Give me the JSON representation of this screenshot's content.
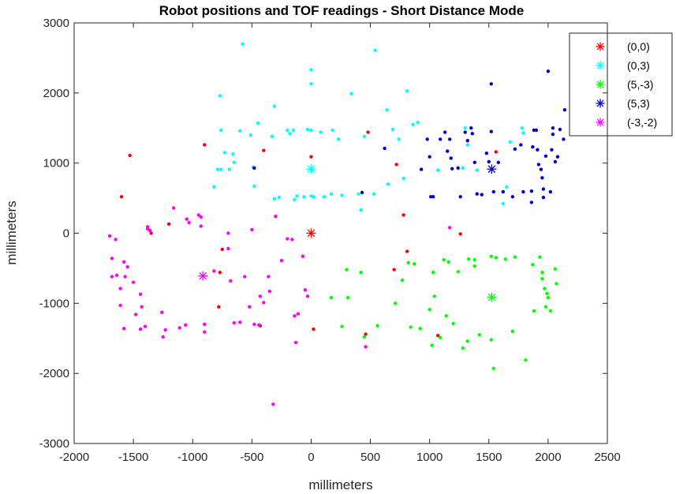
{
  "chart_data": {
    "type": "scatter",
    "title": "Robot positions and TOF readings - Short Distance Mode",
    "xlabel": "millimeters",
    "ylabel": "millimeters",
    "xlim": [
      -2000,
      2500
    ],
    "ylim": [
      -3000,
      3000
    ],
    "xticks": [
      -2000,
      -1500,
      -1000,
      -500,
      0,
      500,
      1000,
      1500,
      2000,
      2500
    ],
    "yticks": [
      -3000,
      -2000,
      -1000,
      0,
      1000,
      2000,
      3000
    ],
    "xtick_labels": [
      "-2000",
      "-1500",
      "-1000",
      "-500",
      "0",
      "500",
      "1000",
      "1500",
      "2000",
      "2500"
    ],
    "ytick_labels": [
      "-3000",
      "-2000",
      "-1000",
      "0",
      "1000",
      "2000",
      "3000"
    ],
    "grid": false,
    "legend_position": "top-right",
    "series": [
      {
        "name": "(0,0)",
        "color": "#ff0000",
        "robot": [
          0,
          0
        ],
        "points": [
          [
            -1530,
            1110
          ],
          [
            -1600,
            520
          ],
          [
            -1350,
            0
          ],
          [
            -900,
            1260
          ],
          [
            -400,
            1180
          ],
          [
            0,
            1090
          ],
          [
            480,
            1440
          ],
          [
            720,
            980
          ],
          [
            1560,
            1160
          ],
          [
            -1200,
            130
          ],
          [
            -750,
            -230
          ],
          [
            -770,
            -560
          ],
          [
            -780,
            -1050
          ],
          [
            -430,
            -1320
          ],
          [
            20,
            -1370
          ],
          [
            460,
            -1440
          ],
          [
            700,
            -520
          ],
          [
            810,
            -260
          ],
          [
            780,
            260
          ],
          [
            1260,
            -10
          ],
          [
            1070,
            -1460
          ]
        ]
      },
      {
        "name": "(0,3)",
        "color": "#00ffff",
        "robot": [
          0,
          914
        ],
        "points": [
          [
            -580,
            2700
          ],
          [
            -770,
            1960
          ],
          [
            -760,
            1470
          ],
          [
            -730,
            1150
          ],
          [
            -660,
            1130
          ],
          [
            -650,
            1010
          ],
          [
            -790,
            910
          ],
          [
            -760,
            910
          ],
          [
            -690,
            910
          ],
          [
            -820,
            660
          ],
          [
            -600,
            1460
          ],
          [
            -510,
            1400
          ],
          [
            -450,
            1570
          ],
          [
            -490,
            940
          ],
          [
            -480,
            670
          ],
          [
            -330,
            1380
          ],
          [
            -310,
            1810
          ],
          [
            -310,
            490
          ],
          [
            -270,
            510
          ],
          [
            -200,
            1470
          ],
          [
            -180,
            1420
          ],
          [
            -150,
            1470
          ],
          [
            -140,
            480
          ],
          [
            -120,
            530
          ],
          [
            -60,
            520
          ],
          [
            -30,
            1480
          ],
          [
            0,
            1470
          ],
          [
            0,
            2330
          ],
          [
            0,
            2130
          ],
          [
            0,
            530
          ],
          [
            20,
            520
          ],
          [
            80,
            1440
          ],
          [
            110,
            520
          ],
          [
            170,
            560
          ],
          [
            180,
            1470
          ],
          [
            230,
            1340
          ],
          [
            260,
            540
          ],
          [
            340,
            1990
          ],
          [
            400,
            560
          ],
          [
            420,
            330
          ],
          [
            450,
            1380
          ],
          [
            530,
            560
          ],
          [
            540,
            2610
          ],
          [
            640,
            1760
          ],
          [
            650,
            700
          ],
          [
            690,
            1480
          ],
          [
            740,
            1340
          ],
          [
            780,
            780
          ],
          [
            810,
            2030
          ],
          [
            860,
            1550
          ],
          [
            900,
            1580
          ],
          [
            1070,
            900
          ],
          [
            1300,
            1500
          ],
          [
            1320,
            1260
          ],
          [
            1280,
            930
          ],
          [
            1400,
            900
          ],
          [
            1620,
            420
          ],
          [
            1650,
            660
          ],
          [
            1680,
            1300
          ],
          [
            1780,
            1500
          ],
          [
            1790,
            1430
          ]
        ]
      },
      {
        "name": "(5,-3)",
        "color": "#00ff00",
        "robot": [
          1524,
          -914
        ],
        "points": [
          [
            170,
            -920
          ],
          [
            260,
            -1330
          ],
          [
            300,
            -520
          ],
          [
            310,
            -920
          ],
          [
            420,
            -560
          ],
          [
            450,
            -1480
          ],
          [
            560,
            -1320
          ],
          [
            710,
            -1000
          ],
          [
            770,
            -670
          ],
          [
            820,
            -420
          ],
          [
            840,
            -1340
          ],
          [
            870,
            -440
          ],
          [
            920,
            -1360
          ],
          [
            1000,
            -1090
          ],
          [
            1020,
            -1600
          ],
          [
            1030,
            -560
          ],
          [
            1040,
            -900
          ],
          [
            1090,
            -1490
          ],
          [
            1120,
            -380
          ],
          [
            1140,
            -1180
          ],
          [
            1160,
            -410
          ],
          [
            1200,
            -1290
          ],
          [
            1240,
            -550
          ],
          [
            1280,
            -1640
          ],
          [
            1320,
            -1540
          ],
          [
            1330,
            -370
          ],
          [
            1380,
            -380
          ],
          [
            1380,
            -470
          ],
          [
            1420,
            -1450
          ],
          [
            1520,
            -330
          ],
          [
            1520,
            -1520
          ],
          [
            1540,
            -1930
          ],
          [
            1560,
            -350
          ],
          [
            1640,
            -370
          ],
          [
            1700,
            -1400
          ],
          [
            1720,
            -340
          ],
          [
            1810,
            -1810
          ],
          [
            1870,
            -450
          ],
          [
            1880,
            -1110
          ],
          [
            1930,
            -340
          ],
          [
            1950,
            -560
          ],
          [
            1950,
            -650
          ],
          [
            1970,
            -790
          ],
          [
            1980,
            -1050
          ],
          [
            1990,
            -860
          ],
          [
            2000,
            -920
          ],
          [
            2020,
            -1110
          ],
          [
            2060,
            -510
          ],
          [
            2070,
            -720
          ]
        ]
      },
      {
        "name": "(5,3)",
        "color": "#0000cc",
        "robot": [
          1524,
          914
        ],
        "points": [
          [
            -480,
            930
          ],
          [
            430,
            580
          ],
          [
            620,
            1210
          ],
          [
            930,
            910
          ],
          [
            980,
            1340
          ],
          [
            1000,
            1090
          ],
          [
            1010,
            520
          ],
          [
            1030,
            520
          ],
          [
            1090,
            1340
          ],
          [
            1130,
            1440
          ],
          [
            1150,
            1170
          ],
          [
            1170,
            1340
          ],
          [
            1180,
            1070
          ],
          [
            1190,
            920
          ],
          [
            1240,
            930
          ],
          [
            1260,
            520
          ],
          [
            1300,
            1440
          ],
          [
            1320,
            1320
          ],
          [
            1350,
            1500
          ],
          [
            1360,
            1420
          ],
          [
            1380,
            1010
          ],
          [
            1400,
            560
          ],
          [
            1440,
            550
          ],
          [
            1480,
            1140
          ],
          [
            1500,
            1020
          ],
          [
            1520,
            1450
          ],
          [
            1520,
            2130
          ],
          [
            1540,
            590
          ],
          [
            1580,
            1010
          ],
          [
            1620,
            590
          ],
          [
            1700,
            520
          ],
          [
            1720,
            1200
          ],
          [
            1770,
            1260
          ],
          [
            1790,
            590
          ],
          [
            1860,
            440
          ],
          [
            1860,
            600
          ],
          [
            1870,
            1230
          ],
          [
            1880,
            1470
          ],
          [
            1900,
            1470
          ],
          [
            1910,
            1190
          ],
          [
            1920,
            980
          ],
          [
            1940,
            910
          ],
          [
            1950,
            790
          ],
          [
            1960,
            630
          ],
          [
            1960,
            510
          ],
          [
            1980,
            1100
          ],
          [
            2000,
            2310
          ],
          [
            2020,
            590
          ],
          [
            2030,
            1190
          ],
          [
            2040,
            1410
          ],
          [
            2040,
            1500
          ],
          [
            2060,
            1020
          ],
          [
            2080,
            1090
          ],
          [
            2100,
            1480
          ],
          [
            2130,
            1340
          ],
          [
            2140,
            1760
          ]
        ]
      },
      {
        "name": "(-3,-2)",
        "color": "#ff00ff",
        "robot": [
          -914,
          -610
        ],
        "points": [
          [
            -1700,
            -40
          ],
          [
            -1680,
            -360
          ],
          [
            -1680,
            -620
          ],
          [
            -1650,
            -90
          ],
          [
            -1640,
            -600
          ],
          [
            -1610,
            -790
          ],
          [
            -1610,
            -1030
          ],
          [
            -1580,
            -410
          ],
          [
            -1580,
            -1360
          ],
          [
            -1570,
            -620
          ],
          [
            -1550,
            -480
          ],
          [
            -1500,
            -700
          ],
          [
            -1480,
            -1160
          ],
          [
            -1440,
            -870
          ],
          [
            -1440,
            -1370
          ],
          [
            -1430,
            -1050
          ],
          [
            -1400,
            -1330
          ],
          [
            -1380,
            90
          ],
          [
            -1380,
            60
          ],
          [
            -1360,
            40
          ],
          [
            -1260,
            -1130
          ],
          [
            -1250,
            -1480
          ],
          [
            -1230,
            -1380
          ],
          [
            -1160,
            360
          ],
          [
            -1110,
            -1350
          ],
          [
            -1060,
            -1310
          ],
          [
            -1050,
            200
          ],
          [
            -1030,
            150
          ],
          [
            -950,
            260
          ],
          [
            -930,
            230
          ],
          [
            -930,
            100
          ],
          [
            -900,
            -1410
          ],
          [
            -900,
            -1300
          ],
          [
            -820,
            -540
          ],
          [
            -700,
            0
          ],
          [
            -700,
            -220
          ],
          [
            -680,
            -680
          ],
          [
            -650,
            -1280
          ],
          [
            -600,
            -1270
          ],
          [
            -560,
            -620
          ],
          [
            -520,
            -1050
          ],
          [
            -500,
            50
          ],
          [
            -480,
            -1300
          ],
          [
            -440,
            -1310
          ],
          [
            -430,
            -900
          ],
          [
            -400,
            -990
          ],
          [
            -360,
            -620
          ],
          [
            -350,
            -830
          ],
          [
            -320,
            -2440
          ],
          [
            -300,
            240
          ],
          [
            -250,
            -390
          ],
          [
            -200,
            -80
          ],
          [
            -160,
            -90
          ],
          [
            -140,
            -1180
          ],
          [
            -130,
            -1560
          ],
          [
            -110,
            -1150
          ],
          [
            -70,
            -330
          ],
          [
            -50,
            -810
          ],
          [
            -30,
            -900
          ],
          [
            460,
            -1620
          ],
          [
            1170,
            80
          ]
        ]
      }
    ]
  }
}
